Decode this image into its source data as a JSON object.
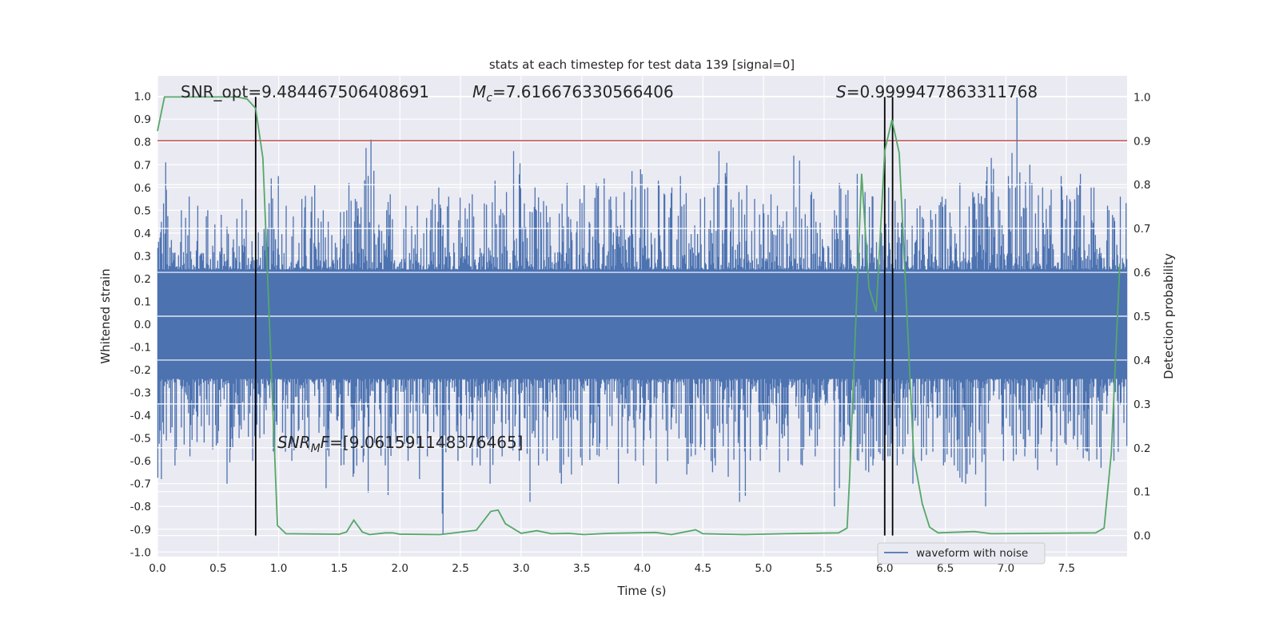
{
  "chart_data": {
    "type": "line",
    "title": "stats at each timestep for test data 139 [signal=0]",
    "xlabel": "Time (s)",
    "ylabel": "Whitened strain",
    "ylabel_right": "Detection probability",
    "xlim": [
      0,
      8.0
    ],
    "ylim": [
      -1.02,
      1.09
    ],
    "ylim_right": [
      -0.048,
      1.048
    ],
    "grid": true,
    "x_ticks": [
      "0.0",
      "0.5",
      "1.0",
      "1.5",
      "2.0",
      "2.5",
      "3.0",
      "3.5",
      "4.0",
      "4.5",
      "5.0",
      "5.5",
      "6.0",
      "6.5",
      "7.0",
      "7.5"
    ],
    "y_ticks": [
      "-1.0",
      "-0.9",
      "-0.8",
      "-0.7",
      "-0.6",
      "-0.5",
      "-0.4",
      "-0.3",
      "-0.2",
      "-0.1",
      "0.0",
      "0.1",
      "0.2",
      "0.3",
      "0.4",
      "0.5",
      "0.6",
      "0.7",
      "0.8",
      "0.9",
      "1.0"
    ],
    "y_ticks_right": [
      "0.0",
      "0.1",
      "0.2",
      "0.3",
      "0.4",
      "0.5",
      "0.6",
      "0.7",
      "0.8",
      "0.9",
      "1.0"
    ],
    "legend": {
      "placement": "lower-right",
      "entries": [
        "waveform with noise"
      ]
    },
    "colors": {
      "waveform": "#4c72b0",
      "probability": "#55a868",
      "threshold": "#c44e52",
      "markers": "#000000",
      "axes_bg": "#eaeaf2"
    },
    "waveform": {
      "name": "waveform with noise",
      "bin_width_s": 0.1,
      "bin_max": [
        0.71,
        0.5,
        0.56,
        0.52,
        0.5,
        0.48,
        0.55,
        0.5,
        0.42,
        0.65,
        0.52,
        0.55,
        0.61,
        0.5,
        0.45,
        0.62,
        0.55,
        0.81,
        0.5,
        0.57,
        0.52,
        0.52,
        0.55,
        0.6,
        0.56,
        0.57,
        0.53,
        0.63,
        0.58,
        0.76,
        0.53,
        0.6,
        0.52,
        0.62,
        0.55,
        0.61,
        0.64,
        0.56,
        0.58,
        0.68,
        0.6,
        0.63,
        0.6,
        0.65,
        0.55,
        0.6,
        0.76,
        0.58,
        0.61,
        0.55,
        0.57,
        0.52,
        0.74,
        0.58,
        0.55,
        0.5,
        0.62,
        0.66,
        0.58,
        0.56,
        0.6,
        0.55,
        0.52,
        0.5,
        0.56,
        0.55,
        0.62,
        0.58,
        0.73,
        0.56,
        1.0,
        0.7,
        0.62,
        0.6,
        0.65,
        0.6,
        0.66,
        0.6,
        0.52,
        0.56
      ],
      "bin_min": [
        -0.68,
        -0.62,
        -0.58,
        -0.52,
        -0.55,
        -0.7,
        -0.55,
        -0.6,
        -0.5,
        -0.58,
        -0.56,
        -0.6,
        -0.55,
        -0.72,
        -0.58,
        -0.62,
        -0.67,
        -0.74,
        -0.62,
        -0.75,
        -0.6,
        -0.68,
        -0.58,
        -0.93,
        -0.6,
        -0.62,
        -0.62,
        -0.7,
        -0.58,
        -0.6,
        -0.78,
        -0.62,
        -0.6,
        -0.7,
        -0.66,
        -0.62,
        -0.58,
        -0.55,
        -0.7,
        -0.6,
        -0.62,
        -0.7,
        -0.6,
        -0.66,
        -0.58,
        -0.65,
        -0.62,
        -0.67,
        -0.78,
        -0.6,
        -0.55,
        -0.65,
        -0.6,
        -0.62,
        -0.58,
        -0.8,
        -0.72,
        -0.6,
        -0.65,
        -0.62,
        -0.58,
        -0.62,
        -0.7,
        -0.6,
        -0.62,
        -0.62,
        -0.7,
        -0.66,
        -0.8,
        -0.6,
        -0.6,
        -0.58,
        -0.64,
        -0.56,
        -0.62,
        -0.55,
        -0.6,
        -0.63,
        -0.6,
        -0.56
      ]
    },
    "detection_probability": {
      "x": [
        0,
        0.058,
        0.66,
        0.74,
        0.81,
        0.87,
        0.99,
        1.06,
        1.5,
        1.56,
        1.62,
        1.69,
        1.75,
        1.88,
        1.94,
        2.0,
        2.33,
        2.63,
        2.75,
        2.81,
        2.87,
        3.0,
        3.13,
        3.25,
        3.39,
        3.52,
        3.72,
        4.11,
        4.24,
        4.44,
        4.5,
        4.84,
        5.17,
        5.62,
        5.69,
        5.71,
        5.81,
        5.87,
        5.93,
        6.0,
        6.06,
        6.12,
        6.24,
        6.31,
        6.37,
        6.44,
        6.74,
        6.88,
        7.74,
        7.81,
        7.87,
        7.94
      ],
      "y": [
        0.922,
        1.0,
        1.0,
        0.995,
        0.974,
        0.86,
        0.023,
        0.004,
        0.003,
        0.008,
        0.035,
        0.008,
        0.002,
        0.006,
        0.006,
        0.003,
        0.002,
        0.012,
        0.055,
        0.058,
        0.027,
        0.005,
        0.011,
        0.004,
        0.005,
        0.002,
        0.005,
        0.007,
        0.002,
        0.013,
        0.004,
        0.002,
        0.004,
        0.006,
        0.017,
        0.13,
        0.825,
        0.565,
        0.51,
        0.877,
        0.948,
        0.872,
        0.18,
        0.072,
        0.019,
        0.006,
        0.009,
        0.004,
        0.006,
        0.017,
        0.19,
        0.62
      ]
    },
    "threshold": 0.9,
    "marker_times": [
      0.81,
      6.0,
      6.065
    ],
    "annotations": {
      "snr_opt": "SNR_opt=9.484467506408691",
      "mc_symbol": "M",
      "mc_sub": "c",
      "mc_value": "=7.616676330566406",
      "s_symbol": "S",
      "s_value": "=0.9999477863311768",
      "snr_mf_symbol": "SNR",
      "snr_mf_sub": "M",
      "snr_mf_symbol2": "F",
      "snr_mf_value": "=[9.061591148376465]"
    }
  }
}
